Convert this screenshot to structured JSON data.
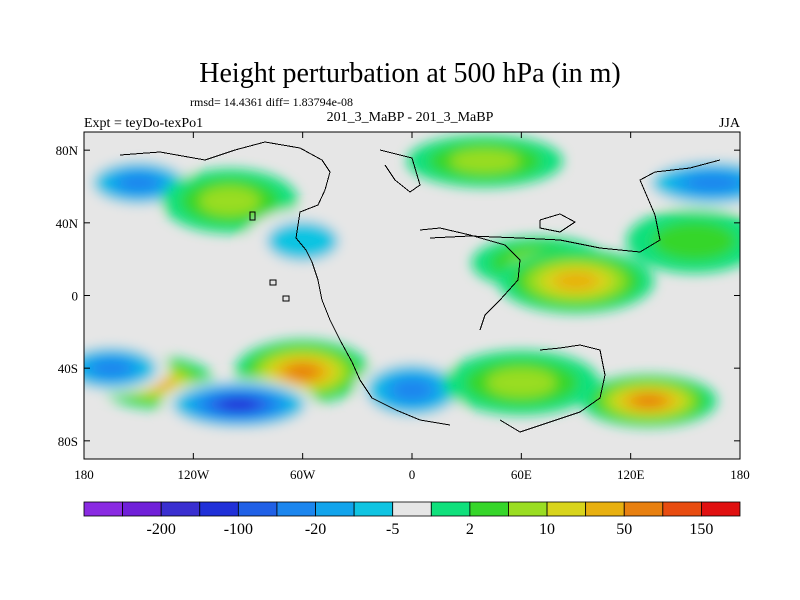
{
  "chart_data": {
    "type": "heatmap",
    "title": "Height perturbation at 500 hPa (in m)",
    "stats": "rmsd= 14.4361 diff= 1.83794e-08",
    "left_label": "Expt = teyDo-texPo1",
    "center_label": "201_3_MaBP - 201_3_MaBP",
    "right_label": "JJA",
    "x_axis": {
      "range": [
        -180,
        180
      ],
      "ticks": [
        {
          "value": -180,
          "label": "180"
        },
        {
          "value": -120,
          "label": "120W"
        },
        {
          "value": -60,
          "label": "60W"
        },
        {
          "value": 0,
          "label": "0"
        },
        {
          "value": 60,
          "label": "60E"
        },
        {
          "value": 120,
          "label": "120E"
        },
        {
          "value": 180,
          "label": "180"
        }
      ]
    },
    "y_axis": {
      "range": [
        -90,
        90
      ],
      "ticks": [
        {
          "value": 80,
          "label": "80N"
        },
        {
          "value": 40,
          "label": "40N"
        },
        {
          "value": 0,
          "label": "0"
        },
        {
          "value": -40,
          "label": "40S"
        },
        {
          "value": -80,
          "label": "80S"
        }
      ]
    },
    "colorbar": {
      "colors": [
        "#8a2be2",
        "#7020d8",
        "#3a2fd0",
        "#2030d8",
        "#2060e6",
        "#1c86ee",
        "#12a4ec",
        "#10c4e2",
        "#e6e6e6",
        "#10e07c",
        "#36d62a",
        "#9add22",
        "#d8d41c",
        "#e8b010",
        "#e88010",
        "#e84c10",
        "#e01010"
      ],
      "labels": [
        "-200",
        "-100",
        "-20",
        "-5",
        "2",
        "10",
        "50",
        "150"
      ]
    },
    "field_features": [
      {
        "lon": -150,
        "lat": 62,
        "value": -20
      },
      {
        "lon": -100,
        "lat": 52,
        "value": 10
      },
      {
        "lon": 40,
        "lat": 74,
        "value": 10
      },
      {
        "lon": -60,
        "lat": 30,
        "value": -5
      },
      {
        "lon": 70,
        "lat": 18,
        "value": 10
      },
      {
        "lon": 90,
        "lat": 8,
        "value": 50
      },
      {
        "lon": -140,
        "lat": -48,
        "value": 50
      },
      {
        "lon": -60,
        "lat": -42,
        "value": 100
      },
      {
        "lon": -95,
        "lat": -60,
        "value": -100
      },
      {
        "lon": 0,
        "lat": -52,
        "value": -20
      },
      {
        "lon": 130,
        "lat": -58,
        "value": 100
      },
      {
        "lon": 60,
        "lat": -48,
        "value": 10
      },
      {
        "lon": -165,
        "lat": -40,
        "value": -20
      },
      {
        "lon": 155,
        "lat": 30,
        "value": 5
      },
      {
        "lon": 165,
        "lat": 62,
        "value": -20
      }
    ]
  }
}
